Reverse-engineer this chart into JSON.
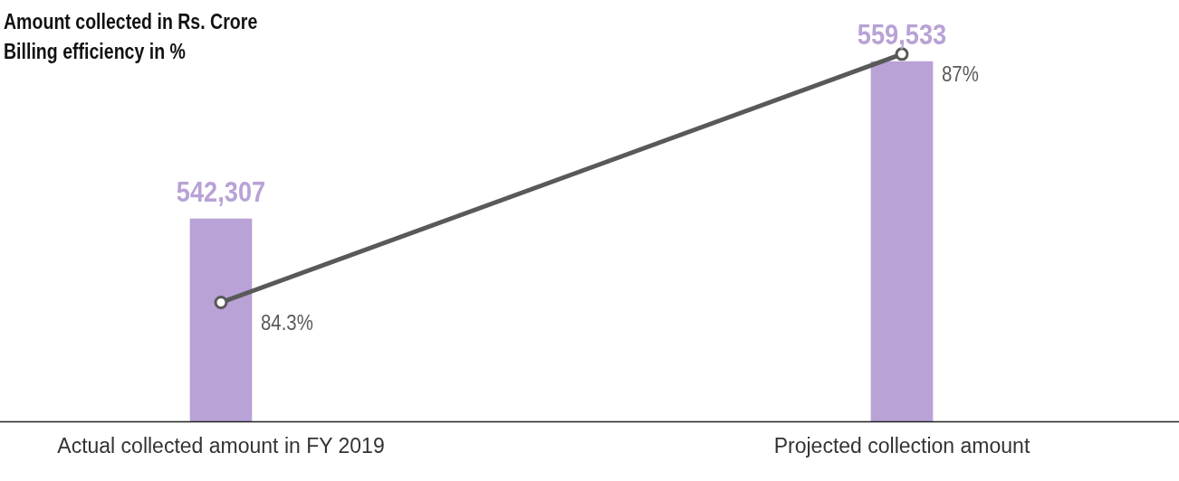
{
  "chart_data": {
    "type": "bar",
    "ylabel": "Amount collected in Rs. Crore",
    "y2label": "Billing efficiency in %",
    "categories": [
      "Actual collected amount in FY 2019",
      "Projected collection amount"
    ],
    "series": [
      {
        "color": "#b8a2d6",
        "values": [
          542307,
          559533
        ],
        "value_labels": [
          "542,307",
          "559,533"
        ]
      },
      {
        "type": "line",
        "axis": "y2",
        "color": "#595959",
        "values": [
          84.3,
          87
        ],
        "value_labels": [
          "84.3%",
          "87%"
        ]
      }
    ],
    "tick_labels": "x",
    "grid": false,
    "legend": false,
    "marker": "circle"
  }
}
